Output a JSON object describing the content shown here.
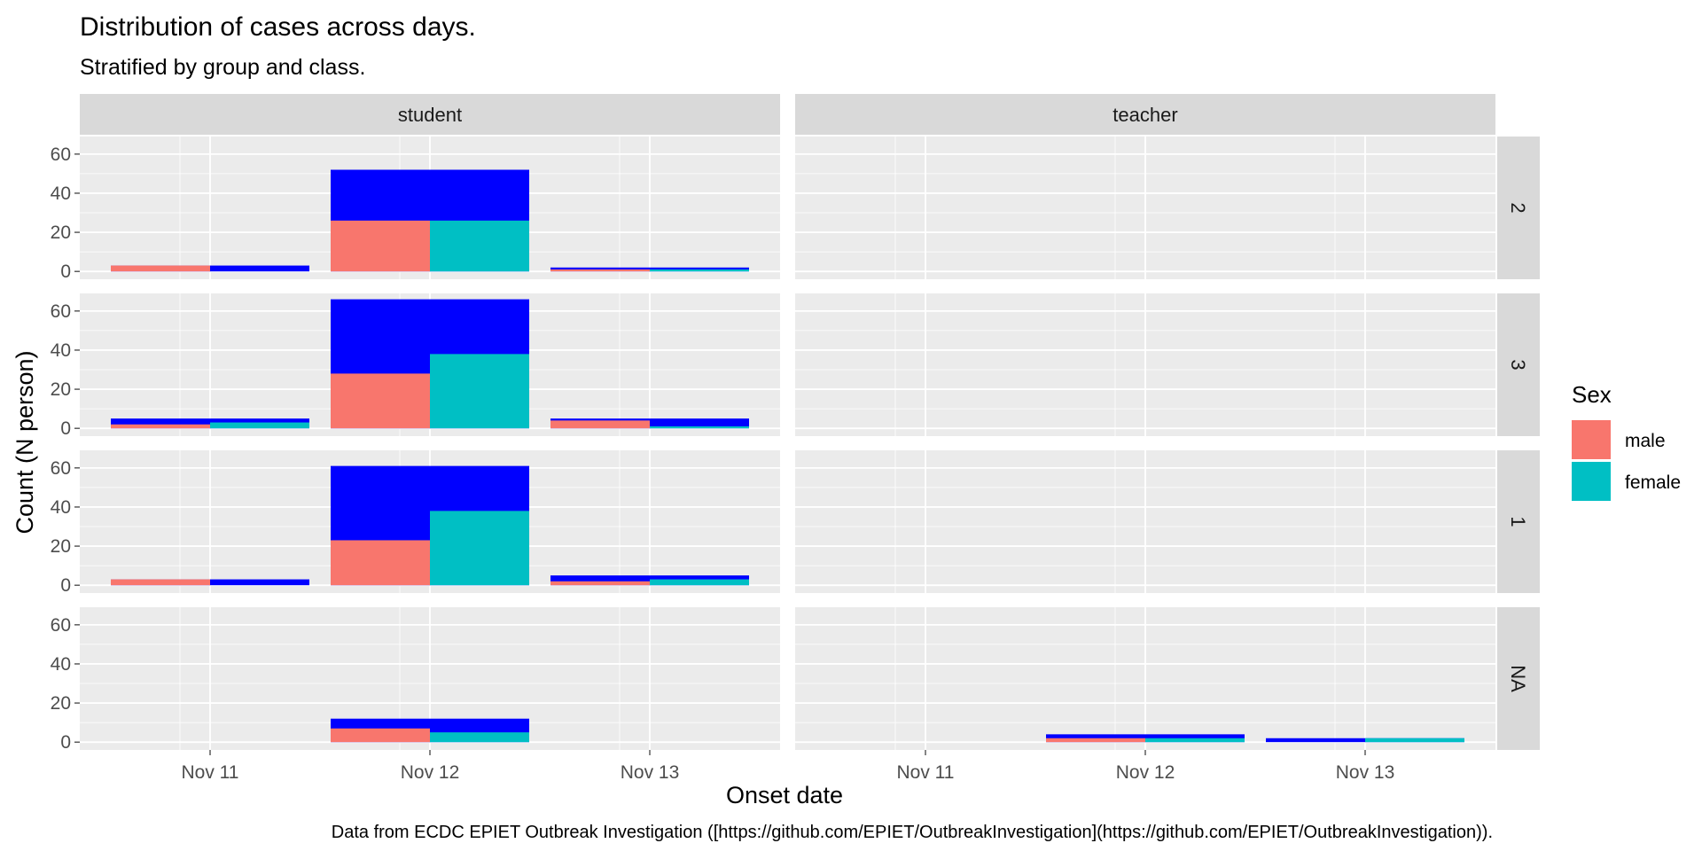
{
  "chart_data": {
    "type": "bar",
    "title": "Distribution of cases across days.",
    "subtitle": "Stratified by group and class.",
    "xlabel": "Onset date",
    "ylabel": "Count (N person)",
    "caption": "Data from ECDC EPIET Outbreak Investigation ([https://github.com/EPIET/OutbreakInvestigation](https://github.com/EPIET/OutbreakInvestigation)).",
    "x_ticks": [
      "Nov 11",
      "Nov 12",
      "Nov 13"
    ],
    "y_ticks": [
      0,
      20,
      40,
      60
    ],
    "ylim": [
      -4,
      69
    ],
    "facet_columns": [
      "student",
      "teacher"
    ],
    "facet_rows": [
      "2",
      "3",
      "1",
      "NA"
    ],
    "legend": {
      "title": "Sex",
      "position": "right",
      "entries": [
        {
          "label": "male",
          "color": "#F8766D"
        },
        {
          "label": "female",
          "color": "#00BFC4"
        }
      ]
    },
    "colors": {
      "male": "#F8766D",
      "female": "#00BFC4",
      "total": "#0000FF",
      "panel_background": "#EBEBEB",
      "strip_background": "#D9D9D9"
    },
    "grid": true,
    "panels": [
      {
        "column": "student",
        "row": "2",
        "bars": [
          {
            "date": "Nov 11",
            "male": 3,
            "female": 0
          },
          {
            "date": "Nov 12",
            "male": 26,
            "female": 26
          },
          {
            "date": "Nov 13",
            "male": 1,
            "female": 1
          }
        ]
      },
      {
        "column": "teacher",
        "row": "2",
        "bars": []
      },
      {
        "column": "student",
        "row": "3",
        "bars": [
          {
            "date": "Nov 11",
            "male": 2,
            "female": 3
          },
          {
            "date": "Nov 12",
            "male": 28,
            "female": 38
          },
          {
            "date": "Nov 13",
            "male": 4,
            "female": 1
          }
        ]
      },
      {
        "column": "teacher",
        "row": "3",
        "bars": []
      },
      {
        "column": "student",
        "row": "1",
        "bars": [
          {
            "date": "Nov 11",
            "male": 3,
            "female": 0
          },
          {
            "date": "Nov 12",
            "male": 23,
            "female": 38
          },
          {
            "date": "Nov 13",
            "male": 2,
            "female": 3
          }
        ]
      },
      {
        "column": "teacher",
        "row": "1",
        "bars": []
      },
      {
        "column": "student",
        "row": "NA",
        "bars": [
          {
            "date": "Nov 12",
            "male": 7,
            "female": 5
          }
        ]
      },
      {
        "column": "teacher",
        "row": "NA",
        "bars": [
          {
            "date": "Nov 12",
            "male": 2,
            "female": 2
          },
          {
            "date": "Nov 13",
            "male": 0,
            "female": 2
          }
        ]
      }
    ]
  }
}
